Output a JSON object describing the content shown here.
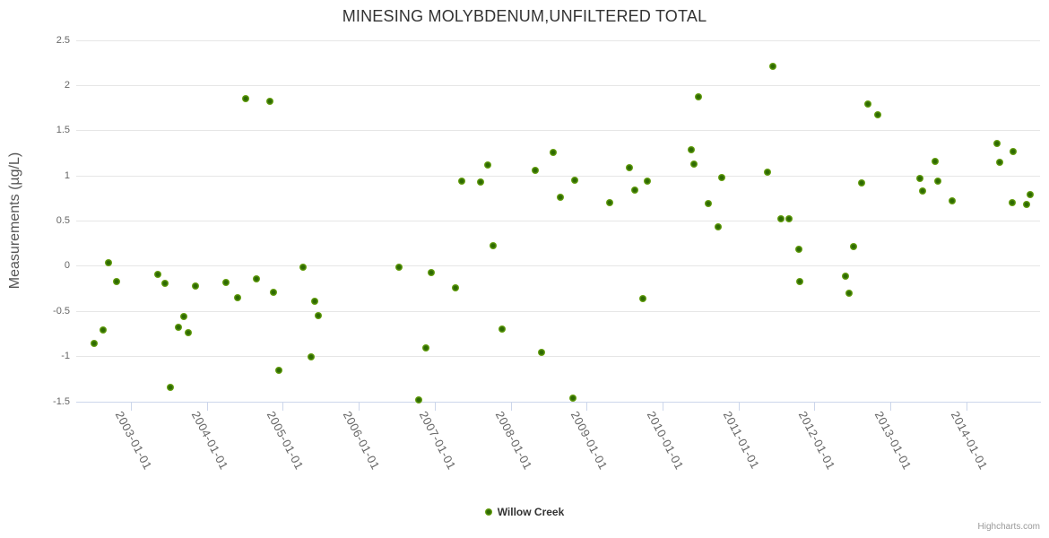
{
  "title": "MINESING MOLYBDENUM,UNFILTERED TOTAL",
  "y_axis": {
    "title": "Measurements (µg/L)",
    "min": -1.5,
    "max": 2.5,
    "tick_interval": 0.5,
    "tick_values": [
      2.5,
      2,
      1.5,
      1,
      0.5,
      0,
      -0.5,
      -1,
      -1.5
    ]
  },
  "x_axis": {
    "tick_labels": [
      "2003-01-01",
      "2004-01-01",
      "2005-01-01",
      "2006-01-01",
      "2007-01-01",
      "2008-01-01",
      "2009-01-01",
      "2010-01-01",
      "2011-01-01",
      "2012-01-01",
      "2013-01-01",
      "2014-01-01"
    ]
  },
  "legend": {
    "label": "Willow Creek"
  },
  "credit": "Highcharts.com",
  "colors": {
    "marker_outer": "#7fba09",
    "marker_inner": "#2d6a02",
    "grid": "#e6e6e6",
    "axis_line": "#ccd6eb",
    "title_text": "#333333",
    "axis_label_text": "#666666",
    "credit_text": "#999999"
  },
  "chart_data": {
    "type": "scatter",
    "title": "MINESING MOLYBDENUM,UNFILTERED TOTAL",
    "xlabel": "",
    "ylabel": "Measurements (µg/L)",
    "ylim": [
      -1.5,
      2.5
    ],
    "xlim_decimal_years": [
      2002.28,
      2014.97
    ],
    "grid": true,
    "legend_position": "bottom-center",
    "x_unit": "decimal_year (dates approximate, read from plot)",
    "series": [
      {
        "name": "Willow Creek",
        "data": [
          [
            2002.52,
            -0.85
          ],
          [
            2002.63,
            -0.71
          ],
          [
            2002.7,
            0.04
          ],
          [
            2002.81,
            -0.17
          ],
          [
            2003.35,
            -0.09
          ],
          [
            2003.45,
            -0.19
          ],
          [
            2003.52,
            -1.34
          ],
          [
            2003.62,
            -0.68
          ],
          [
            2003.7,
            -0.56
          ],
          [
            2003.75,
            -0.74
          ],
          [
            2003.85,
            -0.22
          ],
          [
            2004.25,
            -0.18
          ],
          [
            2004.4,
            -0.35
          ],
          [
            2004.51,
            1.85
          ],
          [
            2004.65,
            -0.14
          ],
          [
            2004.83,
            1.83
          ],
          [
            2004.88,
            -0.29
          ],
          [
            2004.95,
            -1.15
          ],
          [
            2005.27,
            -0.01
          ],
          [
            2005.37,
            -1.0
          ],
          [
            2005.42,
            -0.39
          ],
          [
            2005.47,
            -0.55
          ],
          [
            2006.53,
            -0.01
          ],
          [
            2006.79,
            -1.48
          ],
          [
            2006.89,
            -0.9
          ],
          [
            2006.96,
            -0.07
          ],
          [
            2007.27,
            -0.24
          ],
          [
            2007.36,
            0.94
          ],
          [
            2007.61,
            0.93
          ],
          [
            2007.7,
            1.12
          ],
          [
            2007.77,
            0.23
          ],
          [
            2007.89,
            -0.7
          ],
          [
            2008.32,
            1.06
          ],
          [
            2008.41,
            -0.95
          ],
          [
            2008.56,
            1.26
          ],
          [
            2008.65,
            0.76
          ],
          [
            2008.82,
            -1.46
          ],
          [
            2008.85,
            0.95
          ],
          [
            2009.31,
            0.7
          ],
          [
            2009.57,
            1.09
          ],
          [
            2009.64,
            0.84
          ],
          [
            2009.74,
            -0.36
          ],
          [
            2009.8,
            0.94
          ],
          [
            2010.38,
            1.29
          ],
          [
            2010.42,
            1.13
          ],
          [
            2010.47,
            1.87
          ],
          [
            2010.6,
            0.69
          ],
          [
            2010.73,
            0.44
          ],
          [
            2010.78,
            0.98
          ],
          [
            2011.38,
            1.04
          ],
          [
            2011.45,
            2.21
          ],
          [
            2011.56,
            0.52
          ],
          [
            2011.67,
            0.52
          ],
          [
            2011.79,
            0.19
          ],
          [
            2011.81,
            -0.17
          ],
          [
            2012.41,
            -0.11
          ],
          [
            2012.46,
            -0.3
          ],
          [
            2012.52,
            0.22
          ],
          [
            2012.62,
            0.92
          ],
          [
            2012.71,
            1.8
          ],
          [
            2012.84,
            1.68
          ],
          [
            2013.39,
            0.97
          ],
          [
            2013.43,
            0.83
          ],
          [
            2013.59,
            1.16
          ],
          [
            2013.63,
            0.94
          ],
          [
            2013.82,
            0.72
          ],
          [
            2014.4,
            1.36
          ],
          [
            2014.44,
            1.15
          ],
          [
            2014.61,
            0.7
          ],
          [
            2014.62,
            1.27
          ],
          [
            2014.8,
            0.68
          ],
          [
            2014.84,
            0.79
          ]
        ]
      }
    ]
  }
}
